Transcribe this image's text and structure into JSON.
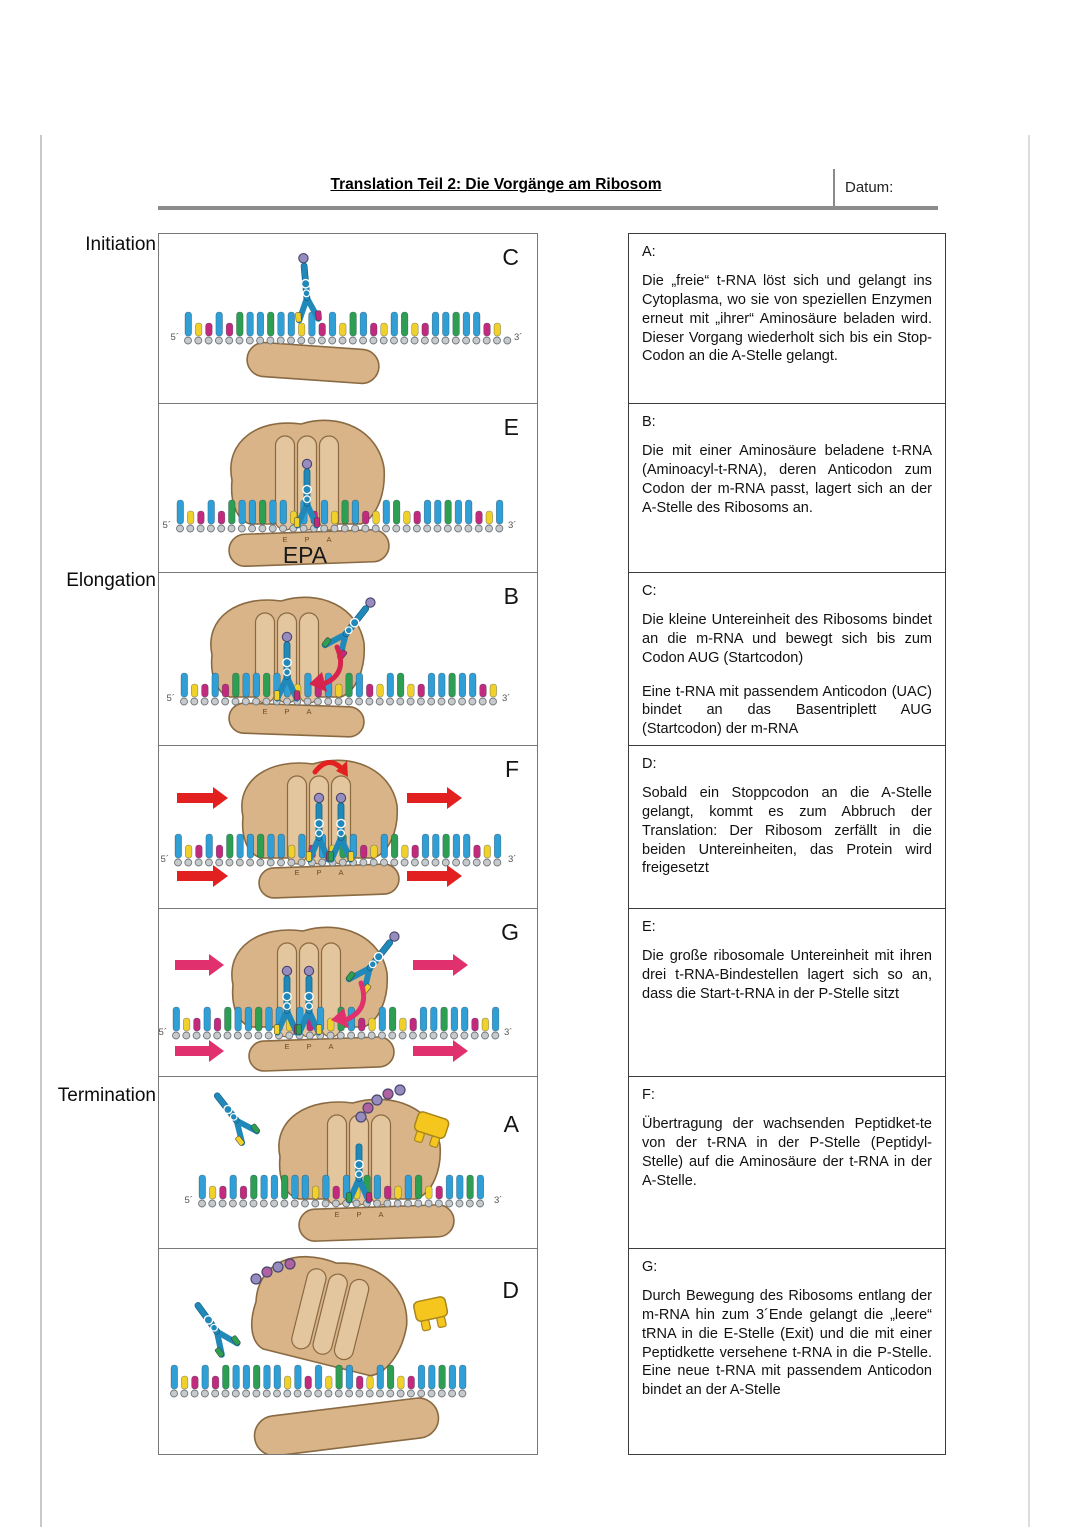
{
  "page": {
    "title": "Translation Teil 2: Die Vorgänge am Ribosom",
    "datum_label": "Datum:"
  },
  "stages": [
    {
      "label": "Initiation"
    },
    {
      "label": "Elongation"
    },
    {
      "label": "Termination"
    }
  ],
  "panels": [
    {
      "letter": "C"
    },
    {
      "letter": "E"
    },
    {
      "letter": "B"
    },
    {
      "letter": "F"
    },
    {
      "letter": "G"
    },
    {
      "letter": "A"
    },
    {
      "letter": "D"
    }
  ],
  "diagram": {
    "five_prime": "5´",
    "three_prime": "3´",
    "epa_label": "EPA",
    "site_letters": [
      "E",
      "P",
      "A"
    ]
  },
  "boxes": [
    {
      "heading": "A:",
      "paragraphs": [
        "Die „freie“ t-RNA löst sich und gelangt ins Cytoplasma, wo sie von speziellen Enzymen erneut mit „ihrer“ Aminosäure beladen wird. Dieser Vorgang wiederholt sich bis ein Stop-Codon an die A-Stelle gelangt."
      ]
    },
    {
      "heading": "B:",
      "paragraphs": [
        "Die mit einer Aminosäure beladene t-RNA (Aminoacyl-t-RNA), deren Anticodon zum Codon der m-RNA passt, lagert sich an der A-Stelle des Ribosoms an."
      ]
    },
    {
      "heading": "C:",
      "paragraphs": [
        "Die kleine Untereinheit des Ribosoms bindet an die m-RNA und bewegt sich bis zum Codon AUG (Startcodon)",
        "Eine t-RNA mit passendem Anticodon (UAC) bindet an das Basentriplett AUG (Startcodon) der m-RNA"
      ]
    },
    {
      "heading": "D:",
      "paragraphs": [
        "Sobald ein Stoppcodon an die A-Stelle gelangt, kommt es zum Abbruch der Translation: Der Ribosom zerfällt in die beiden Untereinheiten, das Protein wird freigesetzt"
      ]
    },
    {
      "heading": "E:",
      "paragraphs": [
        "Die große ribosomale Untereinheit mit ihren drei t-RNA-Bindestellen lagert sich so an, dass die Start-t-RNA in der P-Stelle sitzt"
      ]
    },
    {
      "heading": "F:",
      "paragraphs": [
        "Übertragung der wachsenden Peptidket-te von der t-RNA in der P-Stelle (Peptidyl-Stelle) auf die Aminosäure der t-RNA in der A-Stelle."
      ]
    },
    {
      "heading": "G:",
      "paragraphs": [
        "Durch Bewegung des Ribosoms entlang der m-RNA hin zum 3´Ende gelangt die „leere“ tRNA in die E-Stelle (Exit) und die mit einer Peptidkette versehene t-RNA in die P-Stelle. Eine neue t-RNA mit passendem Anticodon bindet an der A-Stelle"
      ]
    }
  ],
  "colors": {
    "ribosome": "#d8b488",
    "ribosome_light": "#e3c59e",
    "ribosome_dark": "#8a6a42",
    "trna": "#2189ba",
    "amino": "#968cbe",
    "peptide_alt": "#b0619f",
    "mrna_blue": "#2f9fd6",
    "mrna_green": "#2e9e53",
    "mrna_yellow": "#f0d02a",
    "mrna_magenta": "#c22a7d",
    "red_arrow": "#e32020",
    "pink_arrow": "#e0306e",
    "crimson_arrow": "#d6244e",
    "factor_yellow": "#f5c61d",
    "factor_dark": "#a8861c"
  }
}
